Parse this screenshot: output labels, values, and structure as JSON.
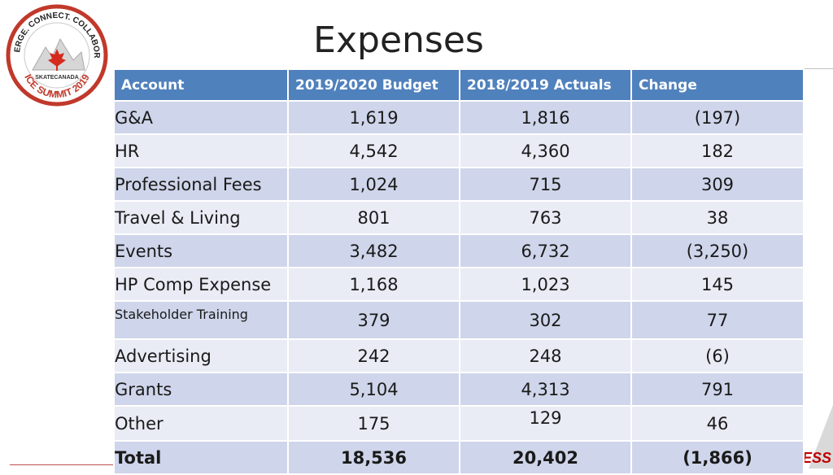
{
  "logo": {
    "arc_top": "CONVERGE. CONNECT. COLLABORATE.",
    "brand": "SKATE CANADA",
    "arc_bottom": "ICE SUMMIT 2019"
  },
  "title": "Expenses",
  "corner_text": "CESS",
  "colors": {
    "header": "#4f81bd",
    "band_dark": "#cfd5ea",
    "band_light": "#e9ebf5",
    "accent": "#c0504d"
  },
  "table": {
    "headers": [
      "Account",
      "2019/2020 Budget",
      "2018/2019 Actuals",
      "Change"
    ],
    "rows": [
      [
        "G&A",
        "1,619",
        "1,816",
        "(197)"
      ],
      [
        "HR",
        "4,542",
        "4,360",
        "182"
      ],
      [
        "Professional Fees",
        "1,024",
        "715",
        "309"
      ],
      [
        "Travel & Living",
        "801",
        "763",
        "38"
      ],
      [
        "Events",
        "3,482",
        "6,732",
        "(3,250)"
      ],
      [
        "HP Comp Expense",
        "1,168",
        "1,023",
        "145"
      ],
      [
        "Stakeholder Training",
        "379",
        "302",
        "77"
      ],
      [
        "Advertising",
        "242",
        "248",
        "(6)"
      ],
      [
        "Grants",
        "5,104",
        "4,313",
        "791"
      ],
      [
        "Other",
        "175",
        "129",
        "46"
      ]
    ],
    "total": [
      "Total",
      "18,536",
      "20,402",
      "(1,866)"
    ]
  }
}
